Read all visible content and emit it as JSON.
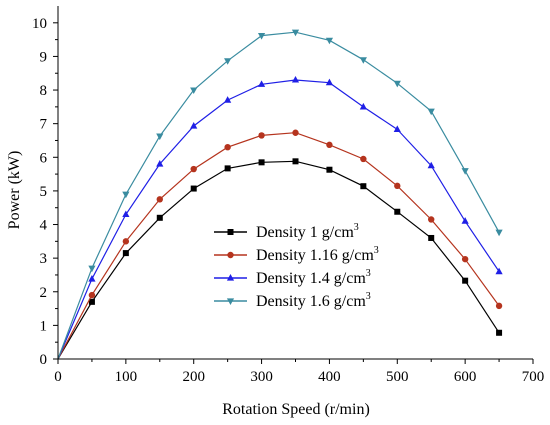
{
  "chart_data": {
    "type": "line",
    "xlabel": "Rotation Speed (r/min)",
    "ylabel": "Power (kW)",
    "xlim": [
      0,
      700
    ],
    "ylim": [
      0,
      10.5
    ],
    "xticks": [
      0,
      100,
      200,
      300,
      400,
      500,
      600,
      700
    ],
    "yticks": [
      0,
      1,
      2,
      3,
      4,
      5,
      6,
      7,
      8,
      9,
      10
    ],
    "x": [
      0,
      50,
      100,
      150,
      200,
      250,
      300,
      350,
      400,
      450,
      500,
      550,
      600,
      650
    ],
    "grid": false,
    "legend_placement": "center",
    "series": [
      {
        "name": "Density 1 g/cm",
        "superscript": "3",
        "color": "#000000",
        "marker": "square",
        "values": [
          0,
          1.7,
          3.15,
          4.2,
          5.07,
          5.67,
          5.85,
          5.88,
          5.63,
          5.14,
          4.38,
          3.6,
          2.33,
          0.78
        ]
      },
      {
        "name": "Density 1.16 g/cm",
        "superscript": "3",
        "color": "#b5341e",
        "marker": "circle",
        "values": [
          0,
          1.9,
          3.5,
          4.75,
          5.65,
          6.3,
          6.65,
          6.73,
          6.37,
          5.95,
          5.15,
          4.15,
          2.97,
          1.58
        ]
      },
      {
        "name": "Density 1.4 g/cm",
        "superscript": "3",
        "color": "#1f1fe6",
        "marker": "triangle-up",
        "values": [
          0,
          2.38,
          4.3,
          5.8,
          6.93,
          7.7,
          8.17,
          8.3,
          8.22,
          7.5,
          6.83,
          5.75,
          4.1,
          2.6
        ]
      },
      {
        "name": "Density 1.6 g/cm",
        "superscript": "3",
        "color": "#3a8ca0",
        "marker": "triangle-down",
        "values": [
          0,
          2.7,
          4.9,
          6.63,
          8.0,
          8.87,
          9.62,
          9.72,
          9.48,
          8.9,
          8.2,
          7.37,
          5.6,
          3.77
        ]
      }
    ]
  }
}
